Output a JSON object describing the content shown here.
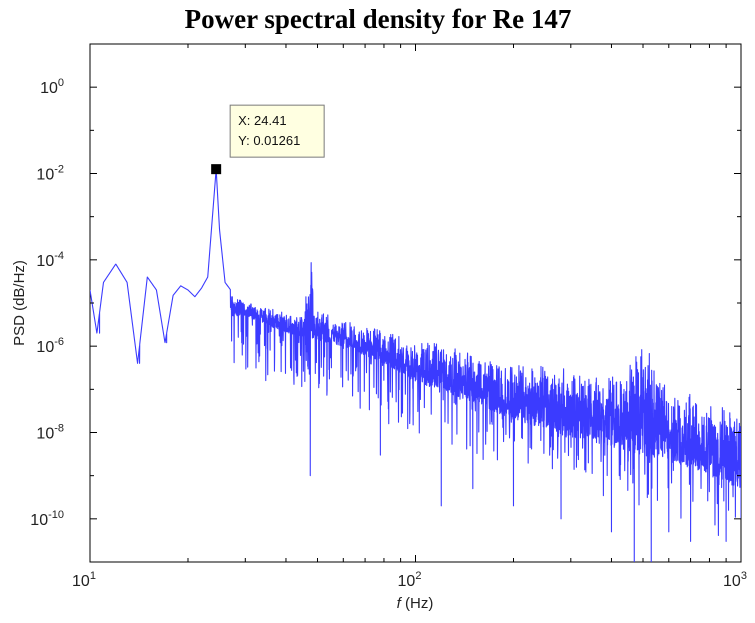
{
  "chart_data": {
    "type": "line",
    "title": "Power spectral density for Re 147",
    "xlabel_italic": "f",
    "xlabel_rest": " (Hz)",
    "ylabel": "PSD (dB/Hz)",
    "x_scale": "log",
    "y_scale": "log",
    "xlim": [
      10,
      1000
    ],
    "ylim": [
      1e-11,
      10
    ],
    "x_ticks": [
      {
        "value": 10,
        "base": "10",
        "exp": "1"
      },
      {
        "value": 100,
        "base": "10",
        "exp": "2"
      },
      {
        "value": 1000,
        "base": "10",
        "exp": "3"
      }
    ],
    "y_ticks": [
      {
        "value": 1,
        "base": "10",
        "exp": "0"
      },
      {
        "value": 0.01,
        "base": "10",
        "exp": "-2"
      },
      {
        "value": 0.0001,
        "base": "10",
        "exp": "-4"
      },
      {
        "value": 1e-06,
        "base": "10",
        "exp": "-6"
      },
      {
        "value": 1e-08,
        "base": "10",
        "exp": "-8"
      },
      {
        "value": 1e-10,
        "base": "10",
        "exp": "-10"
      }
    ],
    "grid": false,
    "series_color": "#3b3bff",
    "peak_marker": {
      "x": 24.41,
      "y": 0.01261
    },
    "datatip": {
      "x_label": "X: 24.41",
      "y_label": "Y: 0.01261"
    },
    "envelope": [
      [
        10,
        2e-05
      ],
      [
        10.5,
        2e-06
      ],
      [
        11,
        3e-05
      ],
      [
        12,
        8e-05
      ],
      [
        13,
        3e-05
      ],
      [
        14,
        4e-07
      ],
      [
        15,
        4e-05
      ],
      [
        16,
        2e-05
      ],
      [
        17,
        1.2e-06
      ],
      [
        18,
        1.5e-05
      ],
      [
        19,
        2.5e-05
      ],
      [
        20,
        2e-05
      ],
      [
        21,
        1.4e-05
      ],
      [
        22,
        2.2e-05
      ],
      [
        23,
        4e-05
      ],
      [
        24.41,
        0.01261
      ],
      [
        25,
        0.0005
      ],
      [
        26,
        3e-05
      ],
      [
        28,
        1.4e-05
      ],
      [
        30,
        1.2e-05
      ],
      [
        35,
        8e-06
      ],
      [
        40,
        6e-06
      ],
      [
        45,
        5e-06
      ],
      [
        48,
        0.00015
      ],
      [
        49,
        8e-06
      ],
      [
        55,
        5e-06
      ],
      [
        60,
        4e-06
      ],
      [
        70,
        3e-06
      ],
      [
        80,
        2.5e-06
      ],
      [
        100,
        1.6e-06
      ],
      [
        120,
        1.3e-06
      ],
      [
        150,
        8e-07
      ],
      [
        200,
        5e-07
      ],
      [
        300,
        3e-07
      ],
      [
        400,
        3e-07
      ],
      [
        450,
        4e-07
      ],
      [
        500,
        1.5e-06
      ],
      [
        550,
        5e-07
      ],
      [
        600,
        1.5e-07
      ],
      [
        700,
        8e-08
      ],
      [
        800,
        5e-08
      ],
      [
        1000,
        3e-08
      ]
    ],
    "dips": [
      [
        10.7,
        2e-06
      ],
      [
        14.2,
        4e-07
      ],
      [
        17.2,
        1.2e-06
      ],
      [
        47.5,
        1e-09
      ],
      [
        78,
        3e-09
      ],
      [
        120,
        2e-10
      ],
      [
        150,
        5e-10
      ],
      [
        200,
        2e-10
      ],
      [
        280,
        1e-10
      ],
      [
        400,
        5e-11
      ],
      [
        470,
        1e-11
      ],
      [
        530,
        1e-11
      ],
      [
        600,
        5e-11
      ],
      [
        700,
        3e-11
      ],
      [
        900,
        3e-11
      ],
      [
        1000,
        1e-10
      ]
    ],
    "noise_floor": [
      [
        30,
        5e-06
      ],
      [
        40,
        2e-06
      ],
      [
        60,
        1e-06
      ],
      [
        80,
        4e-07
      ],
      [
        100,
        1.5e-07
      ],
      [
        150,
        5e-08
      ],
      [
        200,
        2e-08
      ],
      [
        300,
        8e-09
      ],
      [
        500,
        3e-09
      ],
      [
        700,
        1.5e-09
      ],
      [
        1000,
        5e-10
      ]
    ]
  }
}
